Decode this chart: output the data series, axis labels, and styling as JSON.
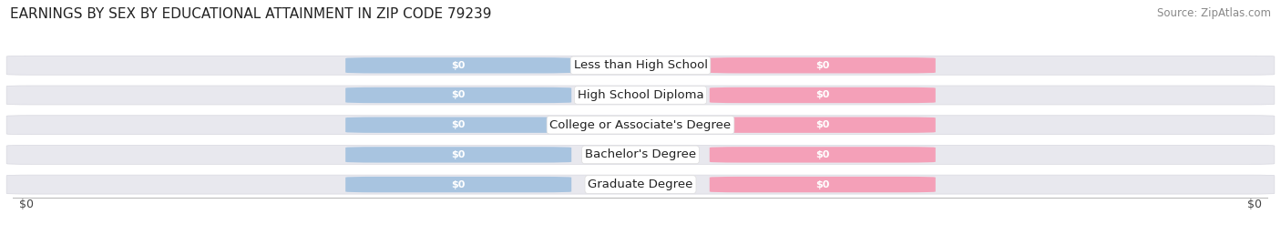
{
  "title": "EARNINGS BY SEX BY EDUCATIONAL ATTAINMENT IN ZIP CODE 79239",
  "source": "Source: ZipAtlas.com",
  "categories": [
    "Less than High School",
    "High School Diploma",
    "College or Associate's Degree",
    "Bachelor's Degree",
    "Graduate Degree"
  ],
  "male_values": [
    0,
    0,
    0,
    0,
    0
  ],
  "female_values": [
    0,
    0,
    0,
    0,
    0
  ],
  "male_color": "#a8c4e0",
  "female_color": "#f4a0b8",
  "bar_bg_color": "#e8e8ee",
  "bar_bg_edge_color": "#d8d8e0",
  "label_color_male": "#ffffff",
  "label_color_female": "#ffffff",
  "xlabel_left": "$0",
  "xlabel_right": "$0",
  "background_color": "#ffffff",
  "title_fontsize": 11,
  "source_fontsize": 8.5,
  "value_label_fontsize": 8,
  "category_fontsize": 9.5
}
